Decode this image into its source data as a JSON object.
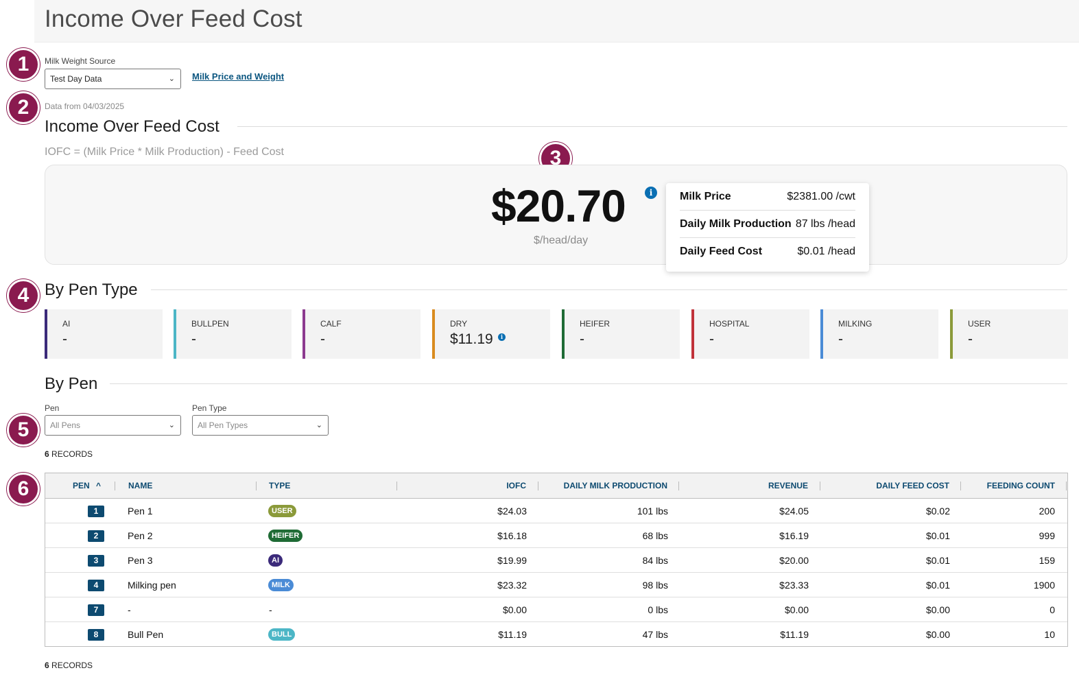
{
  "header": {
    "title": "Income Over Feed Cost"
  },
  "markers": [
    "1",
    "2",
    "3",
    "4",
    "5",
    "6"
  ],
  "controls": {
    "milk_weight_source_label": "Milk Weight Source",
    "milk_weight_source_value": "Test Day Data",
    "milk_price_link": "Milk Price and Weight"
  },
  "data_from": "Data from 04/03/2025",
  "iofc": {
    "section_title": "Income Over Feed Cost",
    "formula": "IOFC = (Milk Price * Milk Production) - Feed Cost",
    "value": "$20.70",
    "unit": "$/head/day",
    "info_glyph": "i",
    "tooltip": [
      {
        "label": "Milk Price",
        "value": "$2381.00 /cwt"
      },
      {
        "label": "Daily Milk Production",
        "value": "87 lbs /head"
      },
      {
        "label": "Daily Feed Cost",
        "value": "$0.01 /head"
      }
    ]
  },
  "by_pen_type": {
    "title": "By Pen Type",
    "cards": [
      {
        "label": "AI",
        "value": "-",
        "color": "#3b2a7a"
      },
      {
        "label": "BULLPEN",
        "value": "-",
        "color": "#4cb6c6"
      },
      {
        "label": "CALF",
        "value": "-",
        "color": "#8c3a8f"
      },
      {
        "label": "DRY",
        "value": "$11.19",
        "color": "#d98b1f",
        "info": true
      },
      {
        "label": "HEIFER",
        "value": "-",
        "color": "#1f6b35"
      },
      {
        "label": "HOSPITAL",
        "value": "-",
        "color": "#c0323a"
      },
      {
        "label": "MILKING",
        "value": "-",
        "color": "#4a8bd6"
      },
      {
        "label": "USER",
        "value": "-",
        "color": "#8b9a3a"
      }
    ]
  },
  "by_pen": {
    "title": "By Pen",
    "pen_label": "Pen",
    "pen_placeholder": "All Pens",
    "pen_type_label": "Pen Type",
    "pen_type_placeholder": "All Pen Types",
    "records_count": "6",
    "records_word": "RECORDS"
  },
  "table": {
    "columns": [
      "PEN",
      "NAME",
      "TYPE",
      "IOFC",
      "DAILY MILK PRODUCTION",
      "REVENUE",
      "DAILY FEED COST",
      "FEEDING COUNT"
    ],
    "sort_glyph": "^",
    "rows": [
      {
        "pen": "1",
        "name": "Pen 1",
        "type": "USER",
        "type_color": "#8b9a3a",
        "iofc": "$24.03",
        "milk": "101 lbs",
        "revenue": "$24.05",
        "feed_cost": "$0.02",
        "count": "200"
      },
      {
        "pen": "2",
        "name": "Pen 2",
        "type": "HEIFER",
        "type_color": "#1f6b35",
        "iofc": "$16.18",
        "milk": "68 lbs",
        "revenue": "$16.19",
        "feed_cost": "$0.01",
        "count": "999"
      },
      {
        "pen": "3",
        "name": "Pen 3",
        "type": "AI",
        "type_color": "#3b2a7a",
        "iofc": "$19.99",
        "milk": "84 lbs",
        "revenue": "$20.00",
        "feed_cost": "$0.01",
        "count": "159"
      },
      {
        "pen": "4",
        "name": "Milking pen",
        "type": "MILK",
        "type_color": "#4a8bd6",
        "iofc": "$23.32",
        "milk": "98 lbs",
        "revenue": "$23.33",
        "feed_cost": "$0.01",
        "count": "1900"
      },
      {
        "pen": "7",
        "name": "-",
        "type": "-",
        "type_color": "",
        "iofc": "$0.00",
        "milk": "0 lbs",
        "revenue": "$0.00",
        "feed_cost": "$0.00",
        "count": "0"
      },
      {
        "pen": "8",
        "name": "Bull Pen",
        "type": "BULL",
        "type_color": "#4cb6c6",
        "iofc": "$11.19",
        "milk": "47 lbs",
        "revenue": "$11.19",
        "feed_cost": "$0.00",
        "count": "10"
      }
    ]
  }
}
